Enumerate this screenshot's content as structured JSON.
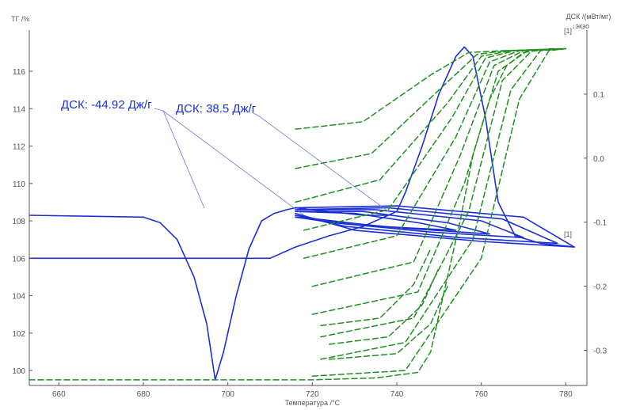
{
  "chart_data": {
    "type": "line",
    "x_label": "Температура /°С",
    "y_left_label": "ТГ /%",
    "y_right_label": "ДСК /(мВт/мг)",
    "y_right_sublabel": "↓экзо",
    "x_ticks": [
      660,
      680,
      700,
      720,
      740,
      760,
      780
    ],
    "x_range": [
      653,
      785
    ],
    "y_left_ticks": [
      100,
      102,
      104,
      106,
      108,
      110,
      112,
      114,
      116
    ],
    "y_left_range": [
      99.2,
      118.2
    ],
    "y_right_ticks": [
      0.1,
      0.0,
      -0.1,
      -0.2,
      -0.3
    ],
    "y_right_range": [
      -0.355,
      0.2
    ],
    "grid": false,
    "colors": {
      "dsc": "#1a2fd6",
      "tg": "#1f8f1f",
      "axis": "#555555"
    },
    "annotations": [
      {
        "text": "ДСК: -44.92 Дж/г",
        "points_to": [
          718,
          108.3
        ]
      },
      {
        "text": "ДСК: 38.5 Дж/г",
        "points_to": [
          738,
          108.5
        ]
      }
    ],
    "curve_labels": [
      "[1]",
      "[1]"
    ],
    "series": [
      {
        "kind": "dsc",
        "axis": "left",
        "style": "solid",
        "x": [
          653,
          680,
          684,
          688,
          692,
          695,
          697,
          699,
          702,
          705,
          708,
          711,
          714,
          716,
          720,
          724,
          728,
          732,
          736,
          738
        ],
        "y": [
          108.3,
          108.2,
          107.9,
          107.0,
          105.0,
          102.5,
          99.5,
          101.0,
          104.0,
          106.5,
          108.0,
          108.4,
          108.6,
          108.7,
          108.6,
          108.5,
          108.4,
          108.3,
          108.3,
          108.3
        ]
      },
      {
        "kind": "dsc",
        "axis": "left",
        "style": "solid",
        "x": [
          653,
          690,
          700,
          706,
          710,
          716,
          724,
          732,
          740,
          742,
          746,
          750,
          754,
          756,
          758,
          761,
          764,
          768,
          774,
          782
        ],
        "y": [
          106.0,
          106.0,
          106.0,
          106.0,
          106.0,
          106.6,
          107.2,
          107.7,
          108.5,
          109.5,
          112.0,
          114.8,
          116.8,
          117.3,
          116.8,
          113.5,
          109.0,
          107.2,
          106.8,
          106.6
        ]
      },
      {
        "kind": "dsc",
        "axis": "left",
        "style": "solid",
        "x": [
          716,
          740,
          770,
          782,
          760,
          730,
          716
        ],
        "y": [
          108.7,
          108.8,
          108.2,
          106.6,
          106.9,
          107.5,
          108.4
        ]
      },
      {
        "kind": "dsc",
        "axis": "left",
        "style": "solid",
        "x": [
          716,
          738,
          765,
          778,
          755,
          728,
          716
        ],
        "y": [
          108.6,
          108.7,
          108.1,
          106.8,
          107.1,
          107.7,
          108.3
        ]
      },
      {
        "kind": "dsc",
        "axis": "left",
        "style": "solid",
        "x": [
          716,
          735,
          760,
          770,
          748,
          725,
          716
        ],
        "y": [
          108.6,
          108.6,
          108.0,
          107.1,
          107.4,
          107.9,
          108.2
        ]
      },
      {
        "kind": "dsc",
        "axis": "left",
        "style": "solid",
        "x": [
          716,
          732,
          752,
          762,
          742,
          723,
          716
        ],
        "y": [
          108.5,
          108.5,
          107.9,
          107.3,
          107.6,
          108.0,
          108.2
        ]
      },
      {
        "kind": "dsc",
        "axis": "left",
        "style": "solid",
        "x": [
          716,
          730,
          745,
          754,
          736,
          721,
          716
        ],
        "y": [
          108.5,
          108.4,
          107.9,
          107.5,
          107.7,
          108.1,
          108.3
        ]
      },
      {
        "kind": "tg",
        "axis": "left",
        "style": "dashed",
        "x": [
          653,
          700,
          720,
          735,
          745,
          748,
          750,
          752,
          755,
          758,
          762,
          766,
          770,
          776,
          780
        ],
        "y": [
          99.5,
          99.5,
          99.5,
          99.6,
          99.9,
          101.0,
          103.0,
          105.0,
          108.0,
          111.5,
          114.5,
          116.3,
          117.0,
          117.2,
          117.2
        ]
      },
      {
        "kind": "tg",
        "axis": "left",
        "style": "dashed",
        "x": [
          720,
          742,
          760,
          769,
          776,
          780
        ],
        "y": [
          99.7,
          100.0,
          106.0,
          114.5,
          117.1,
          117.2
        ]
      },
      {
        "kind": "tg",
        "axis": "left",
        "style": "dashed",
        "x": [
          722,
          742,
          758,
          767,
          774,
          780
        ],
        "y": [
          100.6,
          101.5,
          107.0,
          115.0,
          117.1,
          117.2
        ]
      },
      {
        "kind": "tg",
        "axis": "left",
        "style": "dashed",
        "x": [
          722,
          744,
          757,
          765,
          772,
          780
        ],
        "y": [
          101.8,
          102.8,
          108.5,
          115.5,
          117.1,
          117.2
        ]
      },
      {
        "kind": "tg",
        "axis": "left",
        "style": "dashed",
        "x": [
          720,
          745,
          756,
          764,
          771,
          780
        ],
        "y": [
          103.0,
          104.2,
          110.0,
          116.0,
          117.1,
          117.2
        ]
      },
      {
        "kind": "tg",
        "axis": "left",
        "style": "dashed",
        "x": [
          720,
          744,
          755,
          763,
          770,
          780
        ],
        "y": [
          104.5,
          105.8,
          111.5,
          116.3,
          117.1,
          117.2
        ]
      },
      {
        "kind": "tg",
        "axis": "left",
        "style": "dashed",
        "x": [
          718,
          740,
          754,
          762,
          769,
          780
        ],
        "y": [
          106.0,
          107.2,
          112.5,
          116.5,
          117.1,
          117.2
        ]
      },
      {
        "kind": "tg",
        "axis": "left",
        "style": "dashed",
        "x": [
          718,
          738,
          753,
          761,
          768,
          780
        ],
        "y": [
          107.5,
          108.6,
          113.5,
          116.7,
          117.1,
          117.2
        ]
      },
      {
        "kind": "tg",
        "axis": "left",
        "style": "dashed",
        "x": [
          716,
          736,
          752,
          760,
          767,
          780
        ],
        "y": [
          109.0,
          110.2,
          114.3,
          116.8,
          117.1,
          117.2
        ]
      },
      {
        "kind": "tg",
        "axis": "left",
        "style": "dashed",
        "x": [
          716,
          734,
          750,
          759,
          766,
          780
        ],
        "y": [
          110.8,
          111.6,
          115.0,
          116.9,
          117.1,
          117.2
        ]
      },
      {
        "kind": "tg",
        "axis": "left",
        "style": "dashed",
        "x": [
          716,
          732,
          748,
          757,
          765,
          780
        ],
        "y": [
          112.9,
          113.3,
          115.8,
          117.0,
          117.1,
          117.2
        ]
      },
      {
        "kind": "tg",
        "axis": "left",
        "style": "dashed",
        "x": [
          724,
          740,
          748,
          752
        ],
        "y": [
          100.6,
          100.9,
          102.5,
          104.5
        ]
      },
      {
        "kind": "tg",
        "axis": "left",
        "style": "dashed",
        "x": [
          724,
          738,
          746,
          750
        ],
        "y": [
          101.4,
          101.8,
          103.5,
          105.5
        ]
      },
      {
        "kind": "tg",
        "axis": "left",
        "style": "dashed",
        "x": [
          722,
          736,
          744,
          748
        ],
        "y": [
          102.4,
          102.8,
          104.6,
          106.5
        ]
      }
    ]
  }
}
